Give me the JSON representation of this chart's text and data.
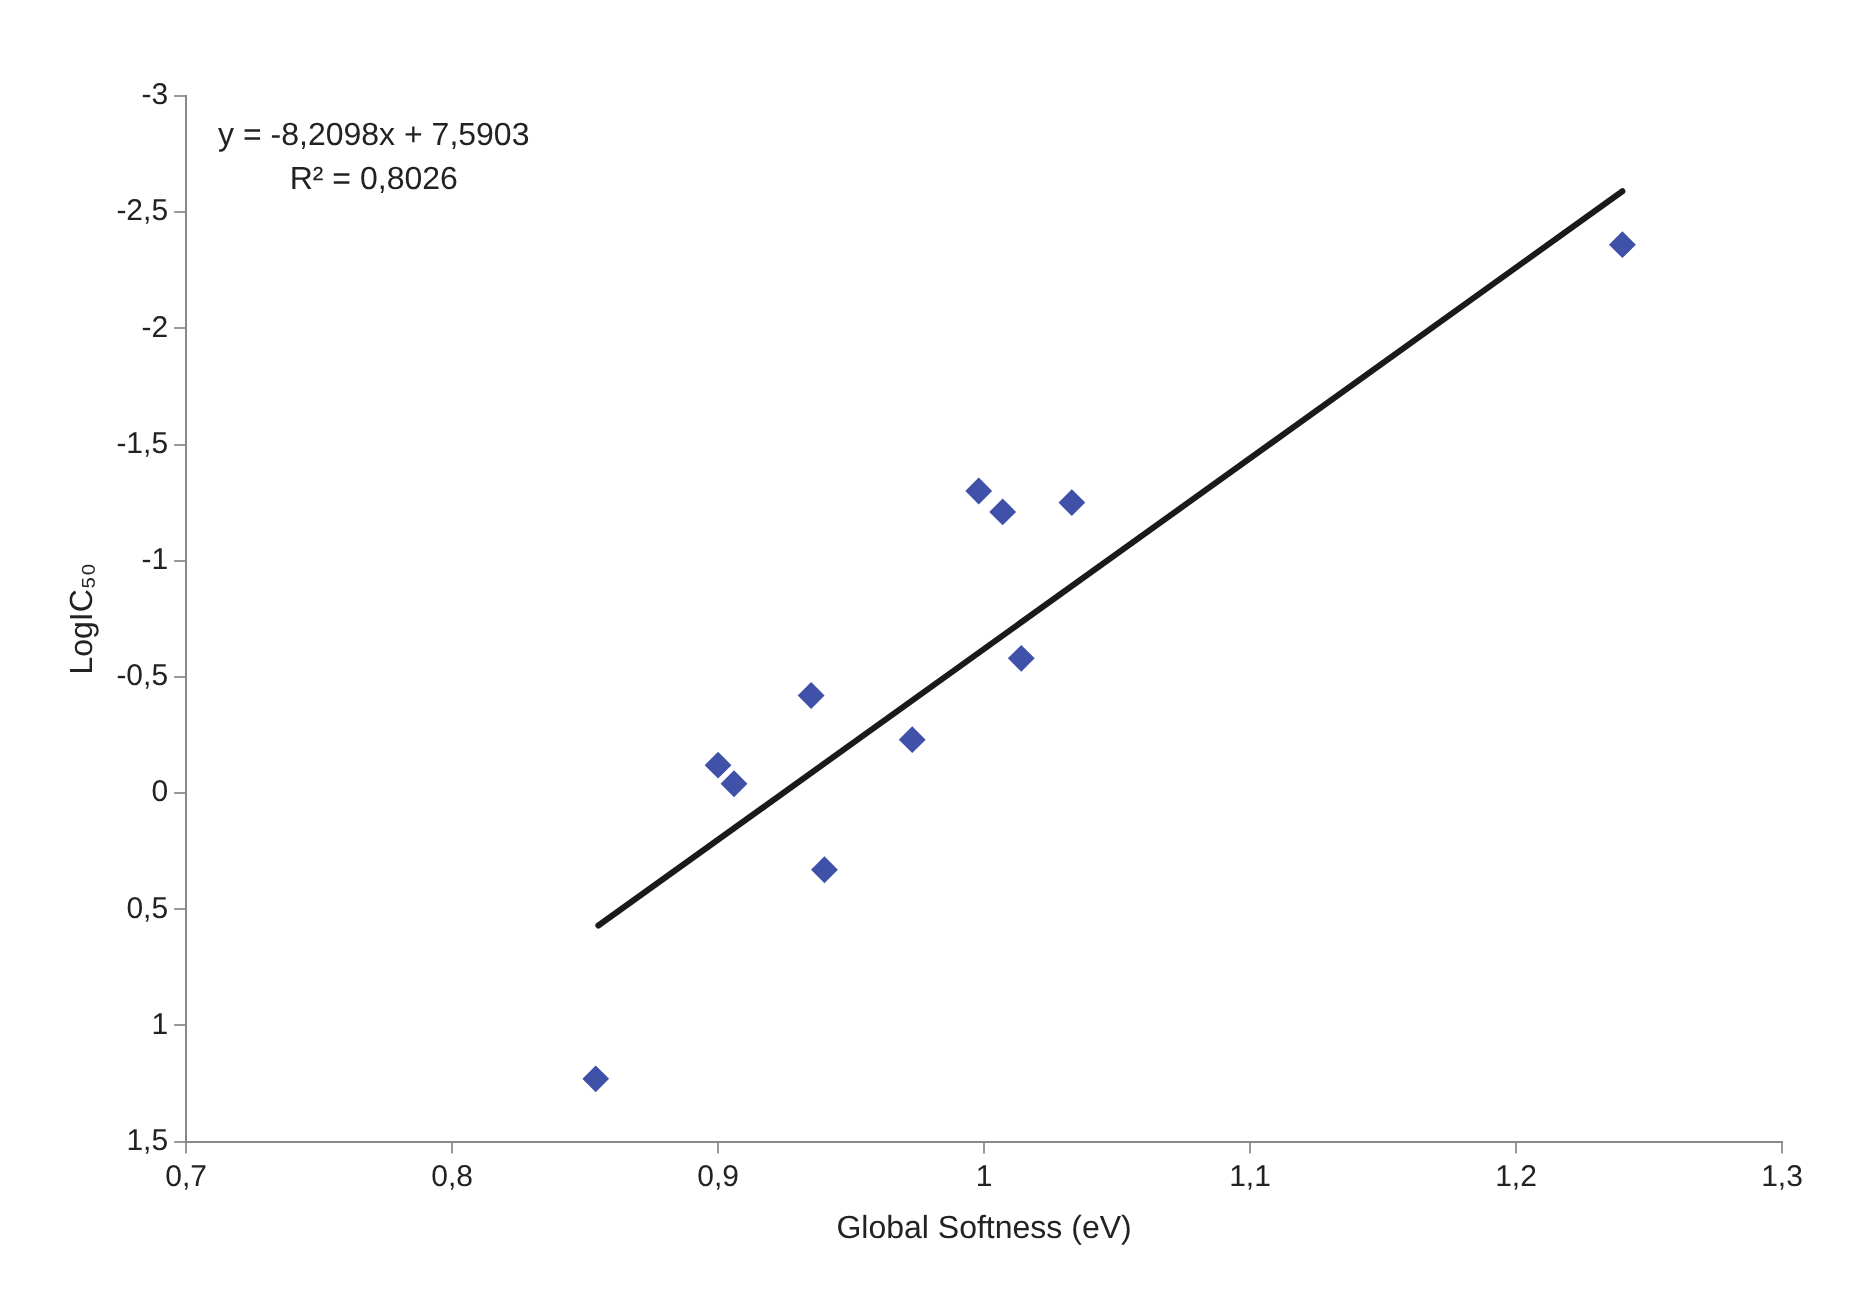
{
  "chart_data": {
    "type": "scatter",
    "xlabel": "Global Softness (eV)",
    "ylabel": "LogIC₅₀",
    "annotations": [
      "y = -8,2098x + 7,5903",
      "R² = 0,8026"
    ],
    "xlim": [
      0.7,
      1.3
    ],
    "xticks": [
      {
        "value": 0.7,
        "label": "0,7"
      },
      {
        "value": 0.8,
        "label": "0,8"
      },
      {
        "value": 0.9,
        "label": "0,9"
      },
      1,
      {
        "value": 1.1,
        "label": "1,1"
      },
      {
        "value": 1.2,
        "label": "1,2"
      },
      {
        "value": 1.3,
        "label": "1,3"
      }
    ],
    "ylim": [
      1.5,
      -3
    ],
    "yticks": [
      -3,
      {
        "value": -2.5,
        "label": "-2,5"
      },
      -2,
      {
        "value": -1.5,
        "label": "-1,5"
      },
      -1,
      {
        "value": -0.5,
        "label": "-0,5"
      },
      0,
      {
        "value": 0.5,
        "label": "0,5"
      },
      1,
      {
        "value": 1.5,
        "label": "1,5"
      }
    ],
    "grid": false,
    "legend": false,
    "marker": "diamond",
    "series": [
      {
        "type": "scatter",
        "color": "#3f51a8",
        "x": [
          0.854,
          0.9,
          0.906,
          0.935,
          0.94,
          0.973,
          0.998,
          1.007,
          1.014,
          1.033,
          1.24
        ],
        "values": [
          1.23,
          -0.12,
          -0.04,
          -0.42,
          0.33,
          -0.23,
          -1.3,
          -1.21,
          -0.58,
          -1.25,
          -2.36
        ]
      },
      {
        "type": "line",
        "color": "#1a1a1a",
        "marker": "none",
        "line_style": "solid",
        "x": [
          0.855,
          1.24
        ],
        "values": [
          0.57,
          -2.59
        ]
      }
    ]
  }
}
